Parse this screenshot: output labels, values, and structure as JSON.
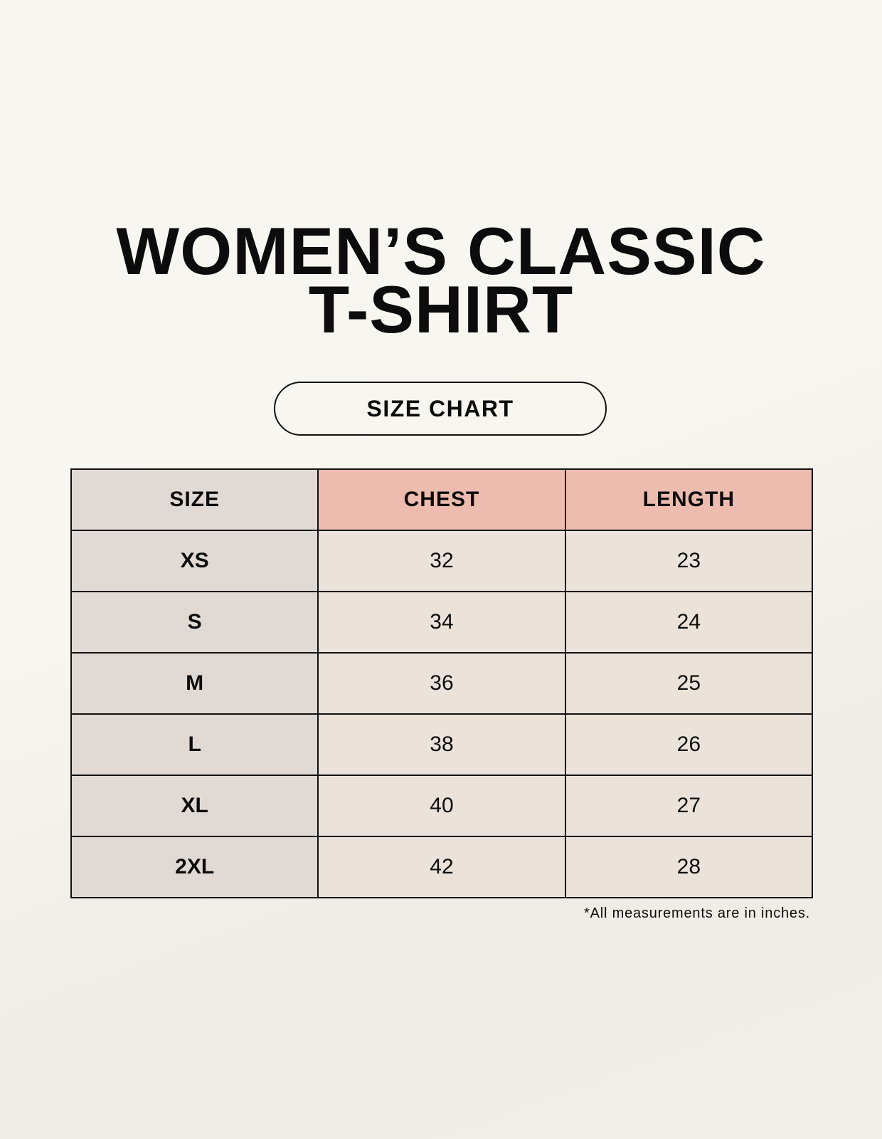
{
  "title_line1": "WOMEN’S CLASSIC",
  "title_line2": "T-SHIRT",
  "subtitle": "SIZE CHART",
  "table": {
    "headers": [
      "SIZE",
      "CHEST",
      "LENGTH"
    ],
    "rows": [
      [
        "XS",
        "32",
        "23"
      ],
      [
        "S",
        "34",
        "24"
      ],
      [
        "M",
        "36",
        "25"
      ],
      [
        "L",
        "38",
        "26"
      ],
      [
        "XL",
        "40",
        "27"
      ],
      [
        "2XL",
        "42",
        "28"
      ]
    ]
  },
  "footnote": "*All measurements are in inches.",
  "colors": {
    "background": "#f8f6ef",
    "size_column": "#e1d9d4",
    "header_accent": "#eebcaf",
    "value_cells": "#ebe3d9"
  }
}
